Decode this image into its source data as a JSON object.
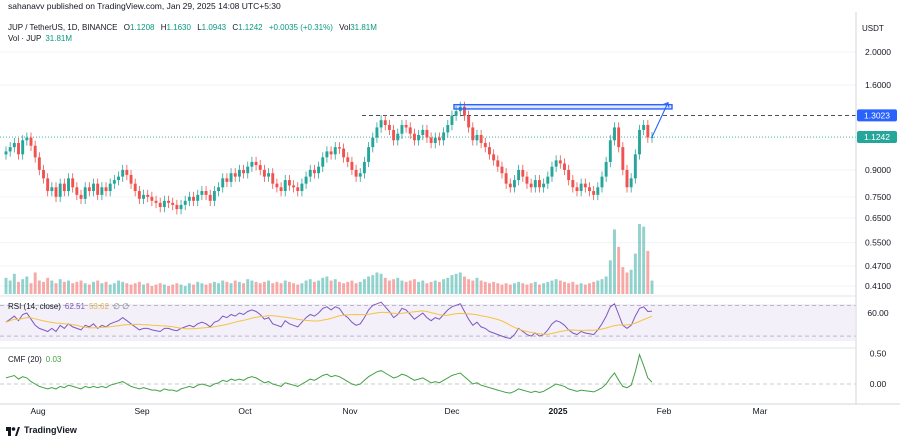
{
  "header": {
    "published": "sahanavv published on TradingView.com, Jan 29, 2025 14:08 UTC+5:30"
  },
  "legend": {
    "symbol": "JUP / TetherUS, 1D, BINANCE",
    "open_label": "O",
    "open": "1.1208",
    "high_label": "H",
    "high": "1.1630",
    "low_label": "L",
    "low": "1.0943",
    "close_label": "C",
    "close": "1.1242",
    "change": "+0.0035 (+0.31%)",
    "vol_label": "Vol",
    "vol": "31.81M",
    "vol_pane_label": "Vol · JUP",
    "vol_pane_value": "31.81M"
  },
  "currency": "USDT",
  "rsi": {
    "label": "RSI (14, close)",
    "value": "62.51",
    "ma_value": "53.62",
    "extra": "∅ ∅"
  },
  "cmf": {
    "label": "CMF (20)",
    "value": "0.03"
  },
  "price_tag_level": "1.3023",
  "price_tag_last": "1.1242",
  "footer": {
    "brand": "TradingView"
  },
  "colors": {
    "up": "#26a69a",
    "down": "#ef5350",
    "rsi": "#7e57c2",
    "rsi_ma": "#f5c242",
    "cmf": "#43a047",
    "zone": "#2962ff",
    "tag_level": "#2962ff",
    "tag_last": "#26a69a"
  },
  "chart_data": {
    "type": "candlestick",
    "scale": "log",
    "price_ticks": [
      "2.0000",
      "1.6000",
      "1.3023",
      "1.1242",
      "0.9000",
      "0.7500",
      "0.6500",
      "0.5500",
      "0.4700",
      "0.4100"
    ],
    "rsi_ticks": [
      "60.00"
    ],
    "cmf_ticks": [
      "0.50",
      "0.00"
    ],
    "x_ticks": [
      "Aug",
      "Sep",
      "Oct",
      "Nov",
      "Dec",
      "2025",
      "Feb",
      "Mar"
    ],
    "resistance_zone": [
      1.36,
      1.4
    ],
    "resistance_line": 1.3023,
    "last_price": 1.1242,
    "closes": [
      1.02,
      1.05,
      1.08,
      1.0,
      1.1,
      1.12,
      1.06,
      0.98,
      0.9,
      0.85,
      0.78,
      0.8,
      0.75,
      0.82,
      0.78,
      0.85,
      0.8,
      0.76,
      0.74,
      0.8,
      0.78,
      0.82,
      0.76,
      0.8,
      0.78,
      0.82,
      0.84,
      0.86,
      0.9,
      0.87,
      0.82,
      0.78,
      0.74,
      0.76,
      0.75,
      0.73,
      0.72,
      0.7,
      0.73,
      0.72,
      0.71,
      0.69,
      0.71,
      0.73,
      0.75,
      0.73,
      0.76,
      0.78,
      0.76,
      0.73,
      0.78,
      0.8,
      0.85,
      0.83,
      0.88,
      0.86,
      0.9,
      0.88,
      0.92,
      0.95,
      0.93,
      0.9,
      0.86,
      0.88,
      0.82,
      0.8,
      0.78,
      0.84,
      0.81,
      0.8,
      0.78,
      0.82,
      0.86,
      0.9,
      0.88,
      0.92,
      0.98,
      1.02,
      1.0,
      1.05,
      1.04,
      0.98,
      0.95,
      0.9,
      0.86,
      0.88,
      0.95,
      1.05,
      1.12,
      1.2,
      1.26,
      1.22,
      1.18,
      1.1,
      1.15,
      1.22,
      1.2,
      1.15,
      1.1,
      1.14,
      1.18,
      1.12,
      1.08,
      1.12,
      1.1,
      1.16,
      1.22,
      1.3,
      1.34,
      1.38,
      1.3,
      1.2,
      1.1,
      1.14,
      1.08,
      1.05,
      1.0,
      0.96,
      0.92,
      0.88,
      0.82,
      0.8,
      0.84,
      0.9,
      0.86,
      0.82,
      0.8,
      0.84,
      0.8,
      0.82,
      0.86,
      0.92,
      0.96,
      0.94,
      0.9,
      0.84,
      0.8,
      0.78,
      0.82,
      0.8,
      0.78,
      0.76,
      0.8,
      0.86,
      0.95,
      1.1,
      1.2,
      1.05,
      0.9,
      0.8,
      0.85,
      1.0,
      1.18,
      1.22,
      1.12,
      1.1242
    ],
    "volumes": [
      1.2,
      1.0,
      1.5,
      0.9,
      1.1,
      1.3,
      0.8,
      1.6,
      1.0,
      0.9,
      1.2,
      1.0,
      0.8,
      1.1,
      0.9,
      1.0,
      0.8,
      0.9,
      1.0,
      0.8,
      0.7,
      0.9,
      1.0,
      0.8,
      0.9,
      0.7,
      0.8,
      1.0,
      0.9,
      0.8,
      0.7,
      0.8,
      0.9,
      0.7,
      0.8,
      0.6,
      0.7,
      0.8,
      0.7,
      0.6,
      0.7,
      0.8,
      0.7,
      0.6,
      0.8,
      0.7,
      0.9,
      0.8,
      0.7,
      0.8,
      0.9,
      0.8,
      1.0,
      0.9,
      0.8,
      1.0,
      0.9,
      0.8,
      1.1,
      1.0,
      0.9,
      0.8,
      0.9,
      1.0,
      0.8,
      0.9,
      0.8,
      1.0,
      0.9,
      0.8,
      0.7,
      0.8,
      1.0,
      1.1,
      0.9,
      1.0,
      1.2,
      1.3,
      1.0,
      1.1,
      0.9,
      0.8,
      0.9,
      1.0,
      0.8,
      0.9,
      1.1,
      1.3,
      1.4,
      1.6,
      1.5,
      1.2,
      1.0,
      1.1,
      1.2,
      1.0,
      0.9,
      1.0,
      1.1,
      0.9,
      1.0,
      0.8,
      0.9,
      1.0,
      0.9,
      1.1,
      1.2,
      1.4,
      1.5,
      1.6,
      1.3,
      1.1,
      1.0,
      1.2,
      1.0,
      0.9,
      0.8,
      0.9,
      0.8,
      0.7,
      0.8,
      0.7,
      0.8,
      0.9,
      0.8,
      0.7,
      0.8,
      0.9,
      0.7,
      0.8,
      0.9,
      1.0,
      1.1,
      1.0,
      0.9,
      0.8,
      0.9,
      0.7,
      0.8,
      0.7,
      0.8,
      0.9,
      1.0,
      1.1,
      1.3,
      2.5,
      4.8,
      3.5,
      2.0,
      1.6,
      1.8,
      3.0,
      5.2,
      5.0,
      3.2,
      1.0
    ],
    "rsi": [
      48,
      52,
      56,
      50,
      58,
      60,
      52,
      44,
      40,
      38,
      36,
      40,
      36,
      44,
      40,
      46,
      42,
      40,
      38,
      44,
      42,
      46,
      40,
      44,
      42,
      46,
      48,
      50,
      54,
      50,
      46,
      42,
      38,
      40,
      40,
      38,
      37,
      36,
      40,
      40,
      38,
      37,
      40,
      42,
      44,
      42,
      46,
      48,
      46,
      42,
      48,
      50,
      56,
      54,
      58,
      56,
      60,
      58,
      62,
      64,
      62,
      58,
      52,
      54,
      46,
      44,
      42,
      50,
      46,
      44,
      42,
      48,
      54,
      58,
      56,
      60,
      66,
      68,
      64,
      68,
      66,
      58,
      54,
      48,
      44,
      46,
      54,
      64,
      70,
      72,
      74,
      68,
      62,
      54,
      58,
      66,
      64,
      58,
      52,
      56,
      60,
      54,
      50,
      54,
      52,
      58,
      64,
      68,
      70,
      72,
      62,
      52,
      44,
      48,
      42,
      40,
      36,
      34,
      32,
      30,
      28,
      27,
      32,
      40,
      36,
      32,
      30,
      34,
      30,
      32,
      38,
      46,
      50,
      48,
      44,
      38,
      34,
      32,
      36,
      34,
      33,
      32,
      38,
      46,
      56,
      68,
      72,
      58,
      44,
      40,
      44,
      56,
      66,
      68,
      62,
      62.51
    ],
    "cmf": [
      0.1,
      0.12,
      0.14,
      0.08,
      0.12,
      0.1,
      0.04,
      0.0,
      -0.04,
      -0.06,
      -0.08,
      -0.06,
      -0.08,
      -0.04,
      -0.06,
      -0.02,
      -0.04,
      -0.06,
      -0.08,
      -0.04,
      -0.06,
      -0.04,
      -0.06,
      -0.04,
      -0.06,
      -0.02,
      0.0,
      0.02,
      0.04,
      0.0,
      -0.04,
      -0.06,
      -0.08,
      -0.06,
      -0.08,
      -0.1,
      -0.1,
      -0.12,
      -0.08,
      -0.1,
      -0.1,
      -0.12,
      -0.08,
      -0.06,
      -0.04,
      -0.06,
      -0.02,
      0.0,
      -0.02,
      -0.04,
      0.0,
      0.02,
      0.06,
      0.04,
      0.08,
      0.06,
      0.08,
      0.06,
      0.1,
      0.12,
      0.1,
      0.06,
      0.02,
      0.04,
      0.0,
      -0.02,
      -0.04,
      0.02,
      0.0,
      -0.02,
      -0.04,
      0.0,
      0.04,
      0.08,
      0.06,
      0.1,
      0.14,
      0.16,
      0.12,
      0.14,
      0.12,
      0.08,
      0.04,
      0.0,
      -0.02,
      0.0,
      0.06,
      0.12,
      0.16,
      0.2,
      0.22,
      0.18,
      0.14,
      0.1,
      0.12,
      0.16,
      0.14,
      0.1,
      0.06,
      0.08,
      0.1,
      0.06,
      0.02,
      0.04,
      0.02,
      0.06,
      0.1,
      0.14,
      0.16,
      0.18,
      0.12,
      0.06,
      0.0,
      0.02,
      -0.02,
      -0.04,
      -0.06,
      -0.08,
      -0.1,
      -0.12,
      -0.14,
      -0.15,
      -0.12,
      -0.08,
      -0.1,
      -0.12,
      -0.14,
      -0.12,
      -0.14,
      -0.12,
      -0.08,
      -0.04,
      0.0,
      -0.02,
      -0.04,
      -0.08,
      -0.1,
      -0.12,
      -0.1,
      -0.11,
      -0.12,
      -0.13,
      -0.1,
      -0.06,
      0.0,
      0.1,
      0.18,
      0.06,
      -0.04,
      -0.06,
      -0.02,
      0.2,
      0.48,
      0.3,
      0.1,
      0.03
    ]
  }
}
